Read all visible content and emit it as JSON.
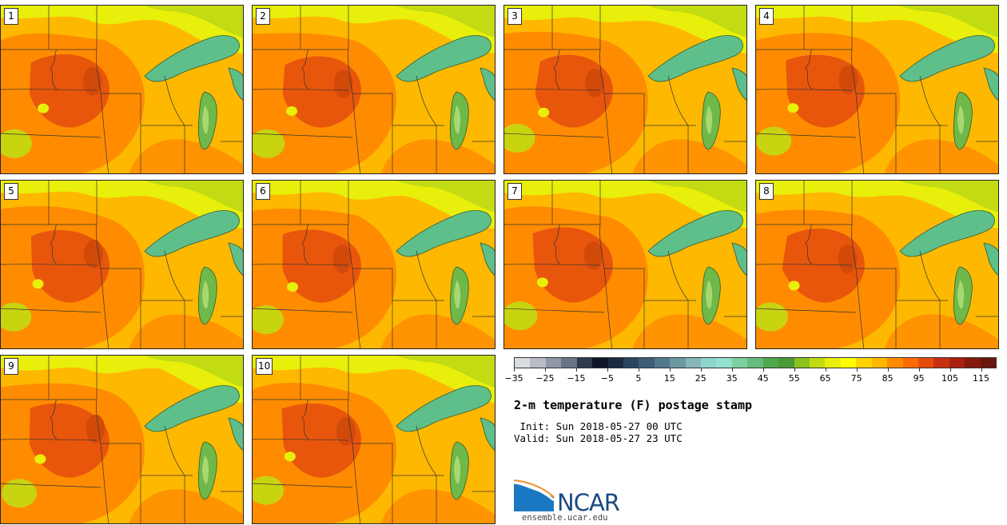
{
  "panels": [
    {
      "label": "1"
    },
    {
      "label": "2"
    },
    {
      "label": "3"
    },
    {
      "label": "4"
    },
    {
      "label": "5"
    },
    {
      "label": "6"
    },
    {
      "label": "7"
    },
    {
      "label": "8"
    },
    {
      "label": "9"
    },
    {
      "label": "10"
    }
  ],
  "colorbar": {
    "colors": [
      "#d9dde3",
      "#b7bcc6",
      "#8f97a8",
      "#6b7487",
      "#2f3a4f",
      "#0d1628",
      "#1b2b40",
      "#2b4560",
      "#3d5d76",
      "#53798c",
      "#6c97a3",
      "#86b6ba",
      "#8fd4cc",
      "#93e0cf",
      "#7ccf9e",
      "#64bd7c",
      "#4ea84f",
      "#4a9a35",
      "#8cc21f",
      "#c2db12",
      "#e8ef0a",
      "#ffff00",
      "#ffd400",
      "#ffb800",
      "#ff8c00",
      "#ff6a00",
      "#e84a0a",
      "#c63010",
      "#a82010",
      "#86180e",
      "#6a160c"
    ],
    "tick_values": [
      "−35",
      "−25",
      "−15",
      "−5",
      "5",
      "15",
      "25",
      "35",
      "45",
      "55",
      "65",
      "75",
      "85",
      "95",
      "105",
      "115"
    ],
    "range": [
      -35,
      120
    ]
  },
  "title": "2-m temperature (F) postage stamp",
  "init": " Init: Sun 2018-05-27 00 UTC",
  "valid": "Valid: Sun 2018-05-27 23 UTC",
  "logo": {
    "text": "NCAR",
    "url": "ensemble.ucar.edu"
  },
  "colors": {
    "lake": "#5fbf8a",
    "hot": "#e8560c",
    "warm": "#ff8c00",
    "mild": "#ffb800",
    "cool": "#e8ef0a",
    "cold": "#c2db12"
  }
}
